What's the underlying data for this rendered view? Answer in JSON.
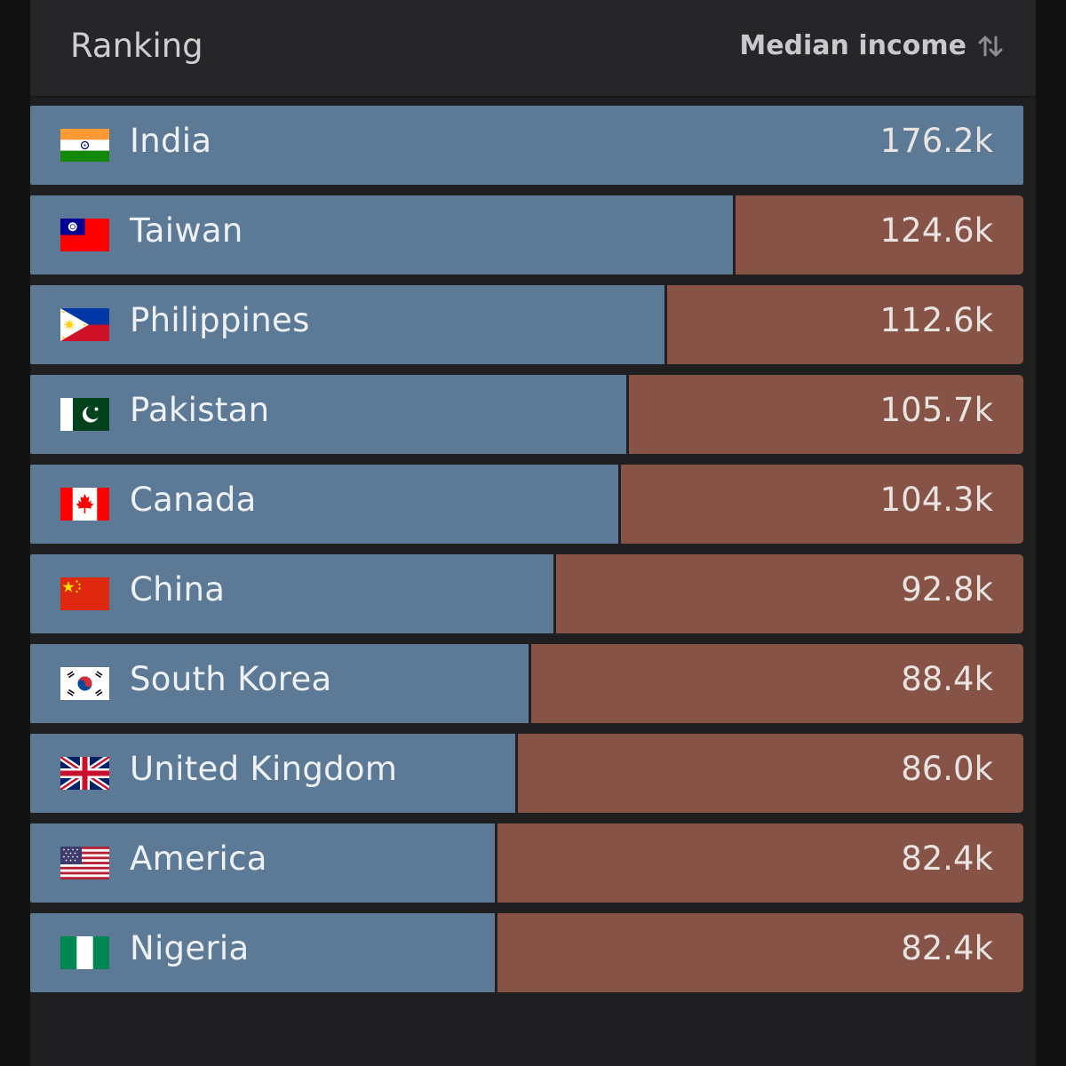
{
  "header": {
    "ranking_label": "Ranking",
    "sort_label": "Median income",
    "sort_icon": "sort-up-down-icon"
  },
  "colors": {
    "bar_fill": "#5c7a96",
    "bar_remainder": "#865346",
    "panel": "#1f1f21",
    "header": "#262628"
  },
  "chart_data": {
    "type": "bar",
    "orientation": "horizontal",
    "categories": [
      "India",
      "Taiwan",
      "Philippines",
      "Pakistan",
      "Canada",
      "China",
      "South Korea",
      "United Kingdom",
      "America",
      "Nigeria"
    ],
    "values": [
      176.2,
      124.6,
      112.6,
      105.7,
      104.3,
      92.8,
      88.4,
      86.0,
      82.4,
      82.4
    ],
    "value_labels": [
      "176.2k",
      "124.6k",
      "112.6k",
      "105.7k",
      "104.3k",
      "92.8k",
      "88.4k",
      "86.0k",
      "82.4k",
      "82.4k"
    ],
    "flags": [
      "india-flag-icon",
      "taiwan-flag-icon",
      "philippines-flag-icon",
      "pakistan-flag-icon",
      "canada-flag-icon",
      "china-flag-icon",
      "south-korea-flag-icon",
      "united-kingdom-flag-icon",
      "usa-flag-icon",
      "nigeria-flag-icon"
    ],
    "xlim": [
      0,
      176.2
    ],
    "grid": false,
    "legend": "none"
  }
}
